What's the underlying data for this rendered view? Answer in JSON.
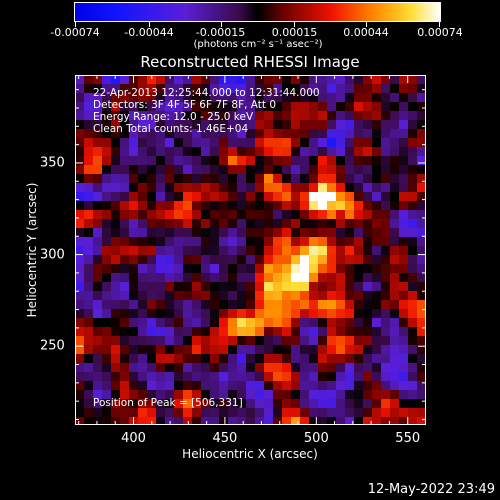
{
  "chart_data": {
    "type": "heatmap",
    "title": "Reconstructed RHESSI Image",
    "xlabel": "Heliocentric X (arcsec)",
    "ylabel": "Heliocentric Y (arcsec)",
    "xlim": [
      368,
      560
    ],
    "ylim": [
      207,
      398
    ],
    "x_ticks": [
      400,
      450,
      500,
      550
    ],
    "y_ticks": [
      250,
      300,
      350
    ],
    "colorbar": {
      "range": [
        -0.00074,
        0.00074
      ],
      "tick_values": [
        -0.00074,
        -0.00044,
        -0.00015,
        0.00015,
        0.00044,
        0.00074
      ],
      "tick_labels": [
        "-0.00074",
        "-0.00044",
        "-0.00015",
        "0.00015",
        "0.00044",
        "0.00074"
      ],
      "unit": "(photons cm⁻² s⁻¹ asec⁻²)"
    },
    "annotations": {
      "time": "22-Apr-2013 12:25:44.000 to 12:31:44.000",
      "detectors": "Detectors: 3F 4F 5F 6F 7F 8F, Att 0",
      "energy": "Energy Range: 12.0 - 25.0 keV",
      "clean": "Clean     Total counts: 1.46E+04",
      "peak": "Position of Peak = [506,331]"
    },
    "peak_position": [
      506,
      331
    ],
    "grid": false
  },
  "timestamp": "12-May-2022 23:49"
}
